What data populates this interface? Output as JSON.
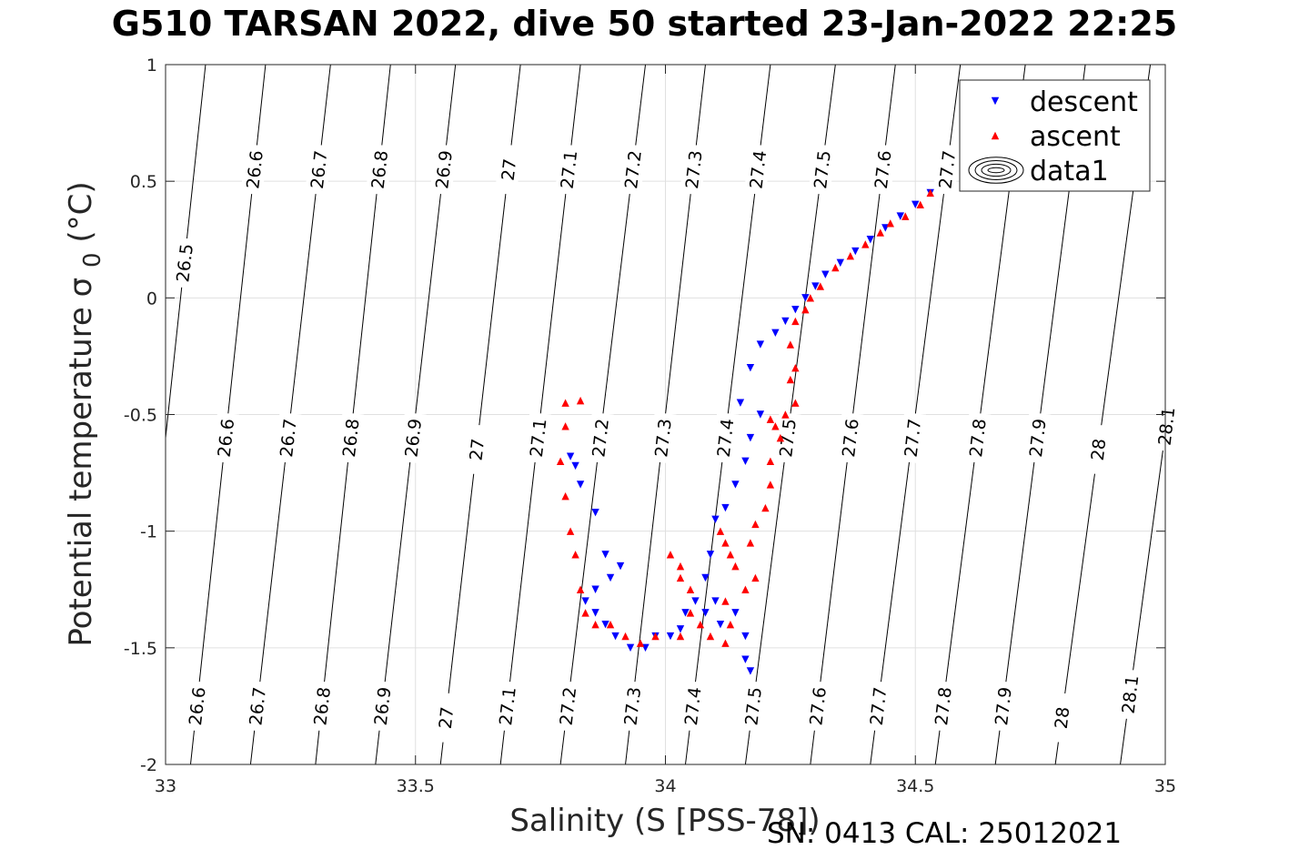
{
  "title": "G510 TARSAN 2022, dive 50 started 23-Jan-2022 22:25",
  "footer": "SN: 0413  CAL: 25012021",
  "chart_data": {
    "type": "scatter",
    "xlabel": "Salinity (S [PSS-78])",
    "ylabel": "Potential temperature σ",
    "ylabel_sub": "0",
    "ylabel_unit": "(°C)",
    "xlim": [
      33,
      35
    ],
    "ylim": [
      -2,
      1
    ],
    "xticks": [
      33,
      33.5,
      34,
      34.5,
      35
    ],
    "xtick_labels": [
      "33",
      "33.5",
      "34",
      "34.5",
      "35"
    ],
    "yticks": [
      -2,
      -1.5,
      -1,
      -0.5,
      0,
      0.5,
      1
    ],
    "ytick_labels": [
      "-2",
      "-1.5",
      "-1",
      "-0.5",
      "0",
      "0.5",
      "1"
    ],
    "grid": true,
    "legend_position": "top-right",
    "legend": [
      "descent",
      "ascent",
      "data1"
    ],
    "contours": {
      "levels": [
        26.5,
        26.6,
        26.7,
        26.8,
        26.9,
        27,
        27.1,
        27.2,
        27.3,
        27.4,
        27.5,
        27.6,
        27.7,
        27.8,
        27.9,
        28,
        28.1
      ],
      "label_texts": [
        "26.5",
        "26.6",
        "26.7",
        "26.8",
        "26.9",
        "27",
        "27.1",
        "27.2",
        "27.3",
        "27.4",
        "27.5",
        "27.6",
        "27.7",
        "27.8",
        "27.9",
        "28",
        "28.1"
      ],
      "s_at_top": [
        33.08,
        33.2,
        33.33,
        33.45,
        33.58,
        33.71,
        33.83,
        33.96,
        34.08,
        34.21,
        34.34,
        34.46,
        34.59,
        34.72,
        34.84,
        34.97,
        35.1
      ],
      "s_at_bottom": [
        32.93,
        33.05,
        33.17,
        33.3,
        33.42,
        33.55,
        33.67,
        33.79,
        33.92,
        34.04,
        34.16,
        34.29,
        34.41,
        34.54,
        34.66,
        34.78,
        34.91
      ],
      "labels_top": [
        {
          "v": 26.5,
          "t": 0.15
        },
        {
          "v": 26.6,
          "t": 0.55
        },
        {
          "v": 26.7,
          "t": 0.55
        },
        {
          "v": 26.8,
          "t": 0.55
        },
        {
          "v": 26.9,
          "t": 0.55
        },
        {
          "v": 27,
          "t": 0.55
        },
        {
          "v": 27.1,
          "t": 0.55
        },
        {
          "v": 27.2,
          "t": 0.55
        },
        {
          "v": 27.3,
          "t": 0.55
        },
        {
          "v": 27.4,
          "t": 0.55
        },
        {
          "v": 27.5,
          "t": 0.55
        },
        {
          "v": 27.6,
          "t": 0.55
        },
        {
          "v": 27.7,
          "t": 0.55
        }
      ],
      "labels_mid": [
        {
          "v": 26.6,
          "t": -0.6
        },
        {
          "v": 26.7,
          "t": -0.6
        },
        {
          "v": 26.8,
          "t": -0.6
        },
        {
          "v": 26.9,
          "t": -0.6
        },
        {
          "v": 27,
          "t": -0.65
        },
        {
          "v": 27.1,
          "t": -0.6
        },
        {
          "v": 27.2,
          "t": -0.6
        },
        {
          "v": 27.3,
          "t": -0.6
        },
        {
          "v": 27.4,
          "t": -0.6
        },
        {
          "v": 27.5,
          "t": -0.6
        },
        {
          "v": 27.6,
          "t": -0.6
        },
        {
          "v": 27.7,
          "t": -0.6
        },
        {
          "v": 27.8,
          "t": -0.6
        },
        {
          "v": 27.9,
          "t": -0.6
        },
        {
          "v": 28,
          "t": -0.65
        },
        {
          "v": 28.1,
          "t": -0.55
        }
      ],
      "labels_bottom": [
        {
          "v": 26.6,
          "t": -1.75
        },
        {
          "v": 26.7,
          "t": -1.75
        },
        {
          "v": 26.8,
          "t": -1.75
        },
        {
          "v": 26.9,
          "t": -1.75
        },
        {
          "v": 27,
          "t": -1.8
        },
        {
          "v": 27.1,
          "t": -1.75
        },
        {
          "v": 27.2,
          "t": -1.75
        },
        {
          "v": 27.3,
          "t": -1.75
        },
        {
          "v": 27.4,
          "t": -1.75
        },
        {
          "v": 27.5,
          "t": -1.75
        },
        {
          "v": 27.6,
          "t": -1.75
        },
        {
          "v": 27.7,
          "t": -1.75
        },
        {
          "v": 27.8,
          "t": -1.75
        },
        {
          "v": 27.9,
          "t": -1.75
        },
        {
          "v": 28,
          "t": -1.8
        },
        {
          "v": 28.1,
          "t": -1.7
        }
      ]
    },
    "series": [
      {
        "name": "descent",
        "color": "#0000ff",
        "marker": "triangle-down",
        "points": [
          [
            34.53,
            0.45
          ],
          [
            34.5,
            0.4
          ],
          [
            34.47,
            0.35
          ],
          [
            34.44,
            0.3
          ],
          [
            34.41,
            0.25
          ],
          [
            34.38,
            0.2
          ],
          [
            34.35,
            0.15
          ],
          [
            34.32,
            0.1
          ],
          [
            34.3,
            0.05
          ],
          [
            34.28,
            0.0
          ],
          [
            34.26,
            -0.05
          ],
          [
            34.24,
            -0.1
          ],
          [
            34.22,
            -0.15
          ],
          [
            34.19,
            -0.2
          ],
          [
            34.17,
            -0.3
          ],
          [
            34.15,
            -0.45
          ],
          [
            34.19,
            -0.5
          ],
          [
            34.17,
            -0.6
          ],
          [
            34.16,
            -0.7
          ],
          [
            34.14,
            -0.8
          ],
          [
            34.12,
            -0.9
          ],
          [
            34.1,
            -0.95
          ],
          [
            34.09,
            -1.1
          ],
          [
            34.08,
            -1.2
          ],
          [
            34.1,
            -1.3
          ],
          [
            34.14,
            -1.35
          ],
          [
            34.16,
            -1.45
          ],
          [
            34.16,
            -1.55
          ],
          [
            34.17,
            -1.6
          ],
          [
            34.11,
            -1.4
          ],
          [
            34.08,
            -1.35
          ],
          [
            34.06,
            -1.3
          ],
          [
            34.04,
            -1.35
          ],
          [
            34.03,
            -1.42
          ],
          [
            34.01,
            -1.45
          ],
          [
            33.98,
            -1.45
          ],
          [
            33.96,
            -1.5
          ],
          [
            33.93,
            -1.5
          ],
          [
            33.9,
            -1.45
          ],
          [
            33.88,
            -1.4
          ],
          [
            33.86,
            -1.35
          ],
          [
            33.84,
            -1.3
          ],
          [
            33.86,
            -1.25
          ],
          [
            33.89,
            -1.2
          ],
          [
            33.91,
            -1.15
          ],
          [
            33.88,
            -1.1
          ],
          [
            33.86,
            -0.92
          ],
          [
            33.83,
            -0.8
          ],
          [
            33.82,
            -0.72
          ],
          [
            33.81,
            -0.68
          ]
        ]
      },
      {
        "name": "ascent",
        "color": "#ff0000",
        "marker": "triangle-up",
        "points": [
          [
            34.53,
            0.45
          ],
          [
            34.51,
            0.4
          ],
          [
            34.48,
            0.35
          ],
          [
            34.45,
            0.32
          ],
          [
            34.43,
            0.28
          ],
          [
            34.4,
            0.23
          ],
          [
            34.37,
            0.18
          ],
          [
            34.34,
            0.13
          ],
          [
            34.31,
            0.05
          ],
          [
            34.29,
            0.0
          ],
          [
            34.28,
            -0.05
          ],
          [
            34.26,
            -0.1
          ],
          [
            34.25,
            -0.2
          ],
          [
            34.26,
            -0.3
          ],
          [
            34.25,
            -0.35
          ],
          [
            34.26,
            -0.45
          ],
          [
            34.24,
            -0.5
          ],
          [
            34.21,
            -0.52
          ],
          [
            34.22,
            -0.55
          ],
          [
            34.23,
            -0.6
          ],
          [
            34.21,
            -0.7
          ],
          [
            34.21,
            -0.8
          ],
          [
            34.2,
            -0.9
          ],
          [
            34.18,
            -0.97
          ],
          [
            34.17,
            -1.05
          ],
          [
            34.18,
            -1.2
          ],
          [
            34.16,
            -1.25
          ],
          [
            34.14,
            -1.15
          ],
          [
            34.12,
            -1.05
          ],
          [
            34.11,
            -1.0
          ],
          [
            34.13,
            -1.1
          ],
          [
            34.12,
            -1.3
          ],
          [
            34.13,
            -1.4
          ],
          [
            34.12,
            -1.48
          ],
          [
            34.09,
            -1.45
          ],
          [
            34.07,
            -1.4
          ],
          [
            34.05,
            -1.25
          ],
          [
            34.03,
            -1.15
          ],
          [
            34.01,
            -1.1
          ],
          [
            34.03,
            -1.2
          ],
          [
            34.05,
            -1.35
          ],
          [
            34.03,
            -1.45
          ],
          [
            33.98,
            -1.45
          ],
          [
            33.95,
            -1.48
          ],
          [
            33.92,
            -1.45
          ],
          [
            33.89,
            -1.4
          ],
          [
            33.86,
            -1.4
          ],
          [
            33.84,
            -1.35
          ],
          [
            33.83,
            -1.25
          ],
          [
            33.82,
            -1.1
          ],
          [
            33.81,
            -1.0
          ],
          [
            33.8,
            -0.85
          ],
          [
            33.79,
            -0.7
          ],
          [
            33.8,
            -0.55
          ],
          [
            33.8,
            -0.45
          ],
          [
            33.83,
            -0.44
          ]
        ]
      }
    ]
  }
}
